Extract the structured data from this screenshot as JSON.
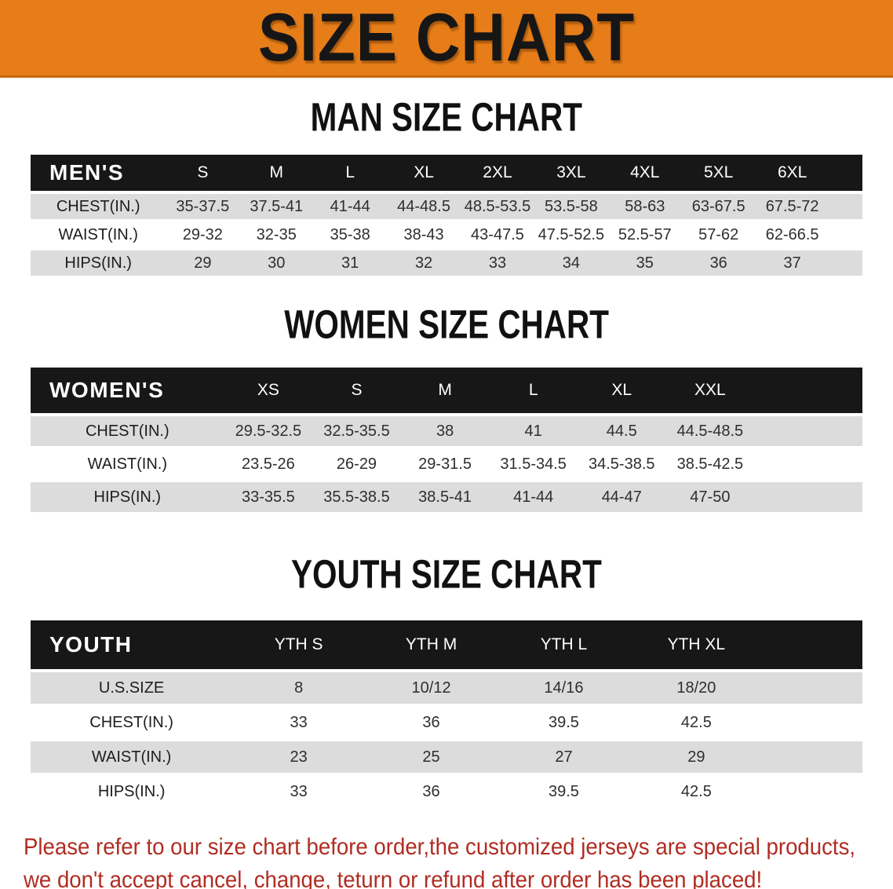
{
  "banner": {
    "title": "SIZE CHART",
    "bg_color": "#e67d19",
    "text_color": "#161616"
  },
  "sections": [
    {
      "heading": "MAN SIZE CHART",
      "table": {
        "header_label": "MEN'S",
        "columns": [
          "S",
          "M",
          "L",
          "XL",
          "2XL",
          "3XL",
          "4XL",
          "5XL",
          "6XL"
        ],
        "rows": [
          {
            "label": "CHEST(IN.)",
            "values": [
              "35-37.5",
              "37.5-41",
              "41-44",
              "44-48.5",
              "48.5-53.5",
              "53.5-58",
              "58-63",
              "63-67.5",
              "67.5-72"
            ]
          },
          {
            "label": "WAIST(IN.)",
            "values": [
              "29-32",
              "32-35",
              "35-38",
              "38-43",
              "43-47.5",
              "47.5-52.5",
              "52.5-57",
              "57-62",
              "62-66.5"
            ]
          },
          {
            "label": "HIPS(IN.)",
            "values": [
              "29",
              "30",
              "31",
              "32",
              "33",
              "34",
              "35",
              "36",
              "37"
            ]
          }
        ]
      }
    },
    {
      "heading": "WOMEN SIZE CHART",
      "table": {
        "header_label": "WOMEN'S",
        "columns": [
          "XS",
          "S",
          "M",
          "L",
          "XL",
          "XXL"
        ],
        "rows": [
          {
            "label": "CHEST(IN.)",
            "values": [
              "29.5-32.5",
              "32.5-35.5",
              "38",
              "41",
              "44.5",
              "44.5-48.5"
            ]
          },
          {
            "label": "WAIST(IN.)",
            "values": [
              "23.5-26",
              "26-29",
              "29-31.5",
              "31.5-34.5",
              "34.5-38.5",
              "38.5-42.5"
            ]
          },
          {
            "label": "HIPS(IN.)",
            "values": [
              "33-35.5",
              "35.5-38.5",
              "38.5-41",
              "41-44",
              "44-47",
              "47-50"
            ]
          }
        ]
      }
    },
    {
      "heading": "YOUTH SIZE CHART",
      "table": {
        "header_label": "YOUTH",
        "columns": [
          "YTH S",
          "YTH M",
          "YTH L",
          "YTH XL"
        ],
        "rows": [
          {
            "label": "U.S.SIZE",
            "values": [
              "8",
              "10/12",
              "14/16",
              "18/20"
            ]
          },
          {
            "label": "CHEST(IN.)",
            "values": [
              "33",
              "36",
              "39.5",
              "42.5"
            ]
          },
          {
            "label": "WAIST(IN.)",
            "values": [
              "23",
              "25",
              "27",
              "29"
            ]
          },
          {
            "label": "HIPS(IN.)",
            "values": [
              "33",
              "36",
              "39.5",
              "42.5"
            ]
          }
        ]
      }
    }
  ],
  "footer": {
    "line1": "Please refer to our size chart before order,the customized jerseys are special products,",
    "line2": "we don't accept cancel, change, teturn or refund after order has been placed!",
    "text_color": "#b02c22"
  },
  "colors": {
    "table_header_bar": "#171717",
    "row_shaded": "#dcdcdc",
    "row_plain": "#ffffff",
    "banner_orange": "#e67d19"
  }
}
